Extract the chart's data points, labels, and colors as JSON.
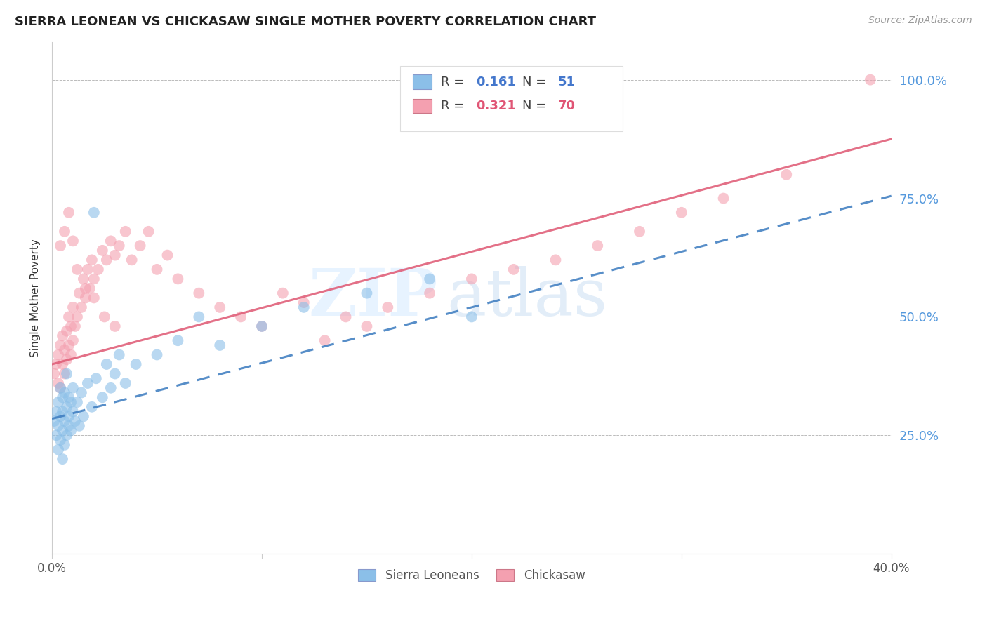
{
  "title": "SIERRA LEONEAN VS CHICKASAW SINGLE MOTHER POVERTY CORRELATION CHART",
  "source": "Source: ZipAtlas.com",
  "ylabel": "Single Mother Poverty",
  "ytick_labels": [
    "100.0%",
    "75.0%",
    "50.0%",
    "25.0%"
  ],
  "ytick_values": [
    1.0,
    0.75,
    0.5,
    0.25
  ],
  "xlim": [
    0.0,
    0.4
  ],
  "ylim": [
    0.0,
    1.08
  ],
  "legend_r1": "0.161",
  "legend_n1": "51",
  "legend_r2": "0.321",
  "legend_n2": "70",
  "sierra_color": "#8bbfe8",
  "chickasaw_color": "#f4a0b0",
  "sierra_line_color": "#3a7abf",
  "chickasaw_line_color": "#e0607a",
  "watermark_zip": "ZIP",
  "watermark_atlas": "atlas",
  "sierra_x": [
    0.001,
    0.002,
    0.002,
    0.003,
    0.003,
    0.003,
    0.004,
    0.004,
    0.004,
    0.005,
    0.005,
    0.005,
    0.005,
    0.006,
    0.006,
    0.006,
    0.007,
    0.007,
    0.007,
    0.008,
    0.008,
    0.008,
    0.009,
    0.009,
    0.01,
    0.01,
    0.011,
    0.012,
    0.013,
    0.014,
    0.015,
    0.017,
    0.019,
    0.021,
    0.024,
    0.026,
    0.028,
    0.03,
    0.032,
    0.035,
    0.04,
    0.05,
    0.06,
    0.07,
    0.08,
    0.1,
    0.12,
    0.15,
    0.18,
    0.2,
    0.02
  ],
  "sierra_y": [
    0.28,
    0.25,
    0.3,
    0.27,
    0.32,
    0.22,
    0.29,
    0.35,
    0.24,
    0.3,
    0.26,
    0.33,
    0.2,
    0.28,
    0.34,
    0.23,
    0.31,
    0.25,
    0.38,
    0.29,
    0.27,
    0.33,
    0.32,
    0.26,
    0.3,
    0.35,
    0.28,
    0.32,
    0.27,
    0.34,
    0.29,
    0.36,
    0.31,
    0.37,
    0.33,
    0.4,
    0.35,
    0.38,
    0.42,
    0.36,
    0.4,
    0.42,
    0.45,
    0.5,
    0.44,
    0.48,
    0.52,
    0.55,
    0.58,
    0.5,
    0.72
  ],
  "chickasaw_x": [
    0.001,
    0.002,
    0.003,
    0.003,
    0.004,
    0.004,
    0.005,
    0.005,
    0.006,
    0.006,
    0.007,
    0.007,
    0.008,
    0.008,
    0.009,
    0.009,
    0.01,
    0.01,
    0.011,
    0.012,
    0.013,
    0.014,
    0.015,
    0.016,
    0.017,
    0.018,
    0.019,
    0.02,
    0.022,
    0.024,
    0.026,
    0.028,
    0.03,
    0.032,
    0.035,
    0.038,
    0.042,
    0.046,
    0.05,
    0.055,
    0.06,
    0.07,
    0.08,
    0.09,
    0.1,
    0.11,
    0.12,
    0.13,
    0.14,
    0.15,
    0.16,
    0.18,
    0.2,
    0.22,
    0.24,
    0.26,
    0.28,
    0.3,
    0.32,
    0.35,
    0.004,
    0.006,
    0.008,
    0.01,
    0.012,
    0.016,
    0.02,
    0.025,
    0.03,
    0.39
  ],
  "chickasaw_y": [
    0.38,
    0.4,
    0.42,
    0.36,
    0.44,
    0.35,
    0.4,
    0.46,
    0.43,
    0.38,
    0.41,
    0.47,
    0.44,
    0.5,
    0.42,
    0.48,
    0.45,
    0.52,
    0.48,
    0.5,
    0.55,
    0.52,
    0.58,
    0.54,
    0.6,
    0.56,
    0.62,
    0.58,
    0.6,
    0.64,
    0.62,
    0.66,
    0.63,
    0.65,
    0.68,
    0.62,
    0.65,
    0.68,
    0.6,
    0.63,
    0.58,
    0.55,
    0.52,
    0.5,
    0.48,
    0.55,
    0.53,
    0.45,
    0.5,
    0.48,
    0.52,
    0.55,
    0.58,
    0.6,
    0.62,
    0.65,
    0.68,
    0.72,
    0.75,
    0.8,
    0.65,
    0.68,
    0.72,
    0.66,
    0.6,
    0.56,
    0.54,
    0.5,
    0.48,
    1.0
  ],
  "sl_line_x0": 0.0,
  "sl_line_y0": 0.285,
  "sl_line_x1": 0.4,
  "sl_line_y1": 0.755,
  "ck_line_x0": 0.0,
  "ck_line_y0": 0.4,
  "ck_line_x1": 0.4,
  "ck_line_y1": 0.875
}
